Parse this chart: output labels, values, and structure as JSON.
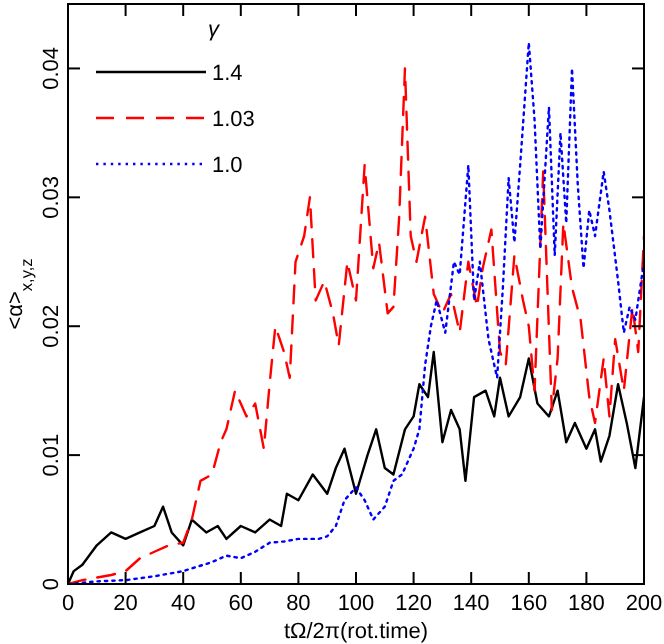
{
  "chart_data": {
    "type": "line",
    "xlabel": "tΩ/2π(rot.time)",
    "ylabel": "<α>$_{x,y,z}$",
    "legend_title": "γ",
    "legend": "top left",
    "xlim": [
      0,
      200
    ],
    "ylim": [
      0,
      0.045
    ],
    "xticks": [
      0,
      20,
      40,
      60,
      80,
      100,
      120,
      140,
      160,
      180,
      200
    ],
    "yticks": [
      0,
      0.01,
      0.02,
      0.03,
      0.04
    ],
    "series": [
      {
        "name": "1.4",
        "color": "#000000",
        "line_style": "solid",
        "x": [
          0,
          2,
          5,
          10,
          15,
          20,
          25,
          30,
          33,
          36,
          40,
          43,
          48,
          52,
          55,
          60,
          65,
          70,
          74,
          76,
          80,
          85,
          90,
          93,
          96,
          100,
          104,
          107,
          110,
          113,
          117,
          120,
          122,
          125,
          127,
          130,
          133,
          136,
          138,
          141,
          145,
          148,
          150,
          153,
          157,
          160,
          163,
          167,
          170,
          173,
          176,
          180,
          183,
          185,
          188,
          191,
          194,
          197,
          200
        ],
        "values": [
          0,
          0.001,
          0.0015,
          0.003,
          0.004,
          0.0035,
          0.004,
          0.0045,
          0.006,
          0.004,
          0.003,
          0.005,
          0.004,
          0.0045,
          0.0035,
          0.0045,
          0.004,
          0.005,
          0.0045,
          0.007,
          0.0065,
          0.0085,
          0.007,
          0.009,
          0.0105,
          0.007,
          0.01,
          0.012,
          0.009,
          0.0085,
          0.012,
          0.013,
          0.0155,
          0.0145,
          0.018,
          0.011,
          0.0135,
          0.012,
          0.008,
          0.0145,
          0.015,
          0.013,
          0.016,
          0.013,
          0.0145,
          0.0175,
          0.014,
          0.013,
          0.015,
          0.011,
          0.0125,
          0.0105,
          0.012,
          0.0095,
          0.0115,
          0.0155,
          0.0125,
          0.009,
          0.0145
        ]
      },
      {
        "name": "1.03",
        "color": "#ff0000",
        "line_style": "dashed",
        "x": [
          0,
          5,
          10,
          15,
          20,
          25,
          30,
          35,
          40,
          43,
          46,
          50,
          53,
          55,
          58,
          62,
          65,
          68,
          70,
          72,
          75,
          77,
          79,
          82,
          84,
          86,
          89,
          92,
          94,
          97,
          100,
          103,
          106,
          108,
          111,
          113,
          115,
          117,
          119,
          121,
          124,
          127,
          130,
          133,
          136,
          139,
          142,
          144,
          147,
          150,
          152,
          155,
          158,
          160,
          162,
          165,
          168,
          170,
          172,
          175,
          178,
          181,
          183,
          186,
          188,
          190,
          193,
          196,
          198,
          200
        ],
        "values": [
          0,
          0.0003,
          0.0005,
          0.0007,
          0.001,
          0.002,
          0.0025,
          0.003,
          0.0032,
          0.005,
          0.008,
          0.0085,
          0.011,
          0.012,
          0.015,
          0.013,
          0.014,
          0.0105,
          0.0155,
          0.02,
          0.018,
          0.016,
          0.025,
          0.027,
          0.03,
          0.022,
          0.0235,
          0.021,
          0.0185,
          0.025,
          0.022,
          0.0325,
          0.0245,
          0.0265,
          0.021,
          0.0215,
          0.0285,
          0.04,
          0.027,
          0.025,
          0.0285,
          0.0225,
          0.021,
          0.0225,
          0.0195,
          0.025,
          0.0215,
          0.0245,
          0.0275,
          0.018,
          0.017,
          0.0255,
          0.022,
          0.02,
          0.015,
          0.032,
          0.0135,
          0.0175,
          0.028,
          0.023,
          0.0205,
          0.0145,
          0.0125,
          0.0175,
          0.013,
          0.019,
          0.015,
          0.0215,
          0.018,
          0.027
        ]
      },
      {
        "name": "1.0",
        "color": "#0000ff",
        "line_style": "dotted",
        "x": [
          0,
          10,
          20,
          30,
          40,
          50,
          55,
          60,
          65,
          70,
          75,
          80,
          87,
          90,
          93,
          96,
          100,
          103,
          106,
          110,
          113,
          116,
          120,
          122,
          124,
          126,
          128,
          131,
          134,
          136,
          139,
          141,
          143,
          146,
          149,
          151,
          153,
          155,
          157,
          160,
          162,
          164,
          167,
          169,
          171,
          173,
          175,
          177,
          179,
          181,
          183,
          186,
          188,
          191,
          193,
          195,
          197,
          200
        ],
        "values": [
          0,
          0.0002,
          0.0003,
          0.0006,
          0.001,
          0.0017,
          0.0022,
          0.002,
          0.0025,
          0.0032,
          0.0033,
          0.0035,
          0.0035,
          0.0037,
          0.0045,
          0.0065,
          0.0075,
          0.0065,
          0.005,
          0.006,
          0.008,
          0.0085,
          0.0105,
          0.012,
          0.017,
          0.02,
          0.022,
          0.0195,
          0.025,
          0.024,
          0.0325,
          0.022,
          0.025,
          0.019,
          0.016,
          0.023,
          0.0315,
          0.0265,
          0.0325,
          0.042,
          0.036,
          0.026,
          0.037,
          0.0255,
          0.035,
          0.028,
          0.04,
          0.031,
          0.0245,
          0.029,
          0.027,
          0.032,
          0.029,
          0.0235,
          0.0195,
          0.0215,
          0.0205,
          0.025
        ]
      }
    ]
  }
}
